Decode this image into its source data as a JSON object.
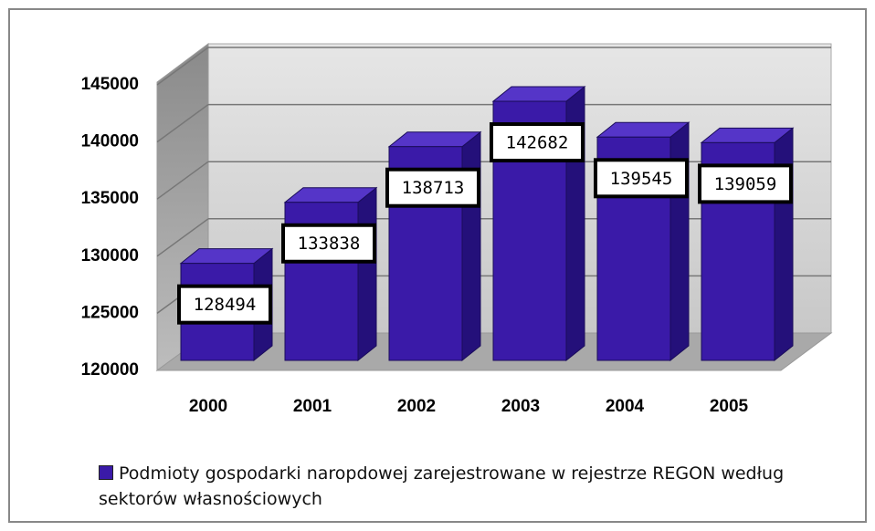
{
  "chart_data": {
    "type": "bar3d",
    "categories": [
      "2000",
      "2001",
      "2002",
      "2003",
      "2004",
      "2005"
    ],
    "series": [
      {
        "name": "Podmioty gospodarki naropdowej zarejestrowane w rejestrze REGON według sektorów własnościowych",
        "color": "#3a1aa8",
        "values": [
          128494,
          133838,
          138713,
          142682,
          139545,
          139059
        ]
      }
    ],
    "ylim": [
      120000,
      147000
    ],
    "yticks": [
      120000,
      125000,
      130000,
      135000,
      140000,
      145000
    ],
    "grid": true,
    "legend": "bottom"
  }
}
